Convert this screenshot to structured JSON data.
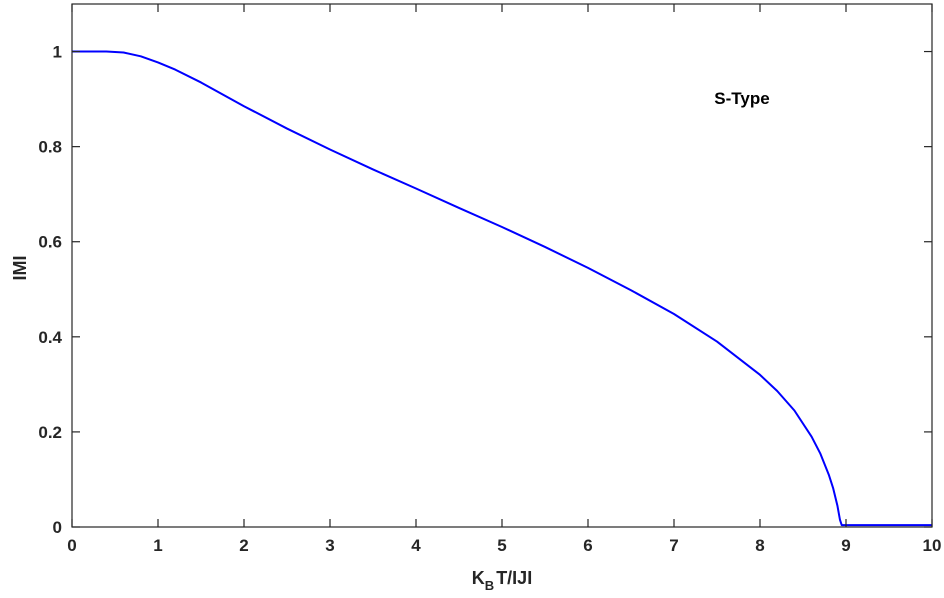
{
  "chart_data": {
    "type": "line",
    "xlabel_main": "K",
    "xlabel_sub": "B",
    "xlabel_rest": "T/IJI",
    "ylabel": "IMI",
    "annotation": "S-Type",
    "xlim": [
      0,
      10
    ],
    "ylim": [
      0,
      1.1
    ],
    "xticks": [
      0,
      1,
      2,
      3,
      4,
      5,
      6,
      7,
      8,
      9,
      10
    ],
    "yticks": [
      0,
      0.2,
      0.4,
      0.6,
      0.8,
      1
    ],
    "xtick_labels": [
      "0",
      "1",
      "2",
      "3",
      "4",
      "5",
      "6",
      "7",
      "8",
      "9",
      "10"
    ],
    "ytick_labels": [
      "0",
      "0.2",
      "0.4",
      "0.6",
      "0.8",
      "1"
    ],
    "grid": false,
    "series": [
      {
        "color": "#0000ff",
        "x": [
          0,
          0.2,
          0.4,
          0.6,
          0.8,
          1.0,
          1.2,
          1.5,
          2.0,
          2.5,
          3.0,
          3.5,
          4.0,
          4.5,
          5.0,
          5.5,
          6.0,
          6.5,
          7.0,
          7.5,
          8.0,
          8.2,
          8.4,
          8.6,
          8.7,
          8.8,
          8.85,
          8.9,
          8.93,
          8.95,
          8.97,
          9.0,
          10.0
        ],
        "y": [
          1.0,
          1.0,
          1.0,
          0.998,
          0.99,
          0.977,
          0.962,
          0.935,
          0.885,
          0.838,
          0.794,
          0.752,
          0.712,
          0.671,
          0.631,
          0.589,
          0.545,
          0.498,
          0.448,
          0.39,
          0.32,
          0.286,
          0.245,
          0.19,
          0.155,
          0.11,
          0.082,
          0.045,
          0.015,
          0.004,
          0.004,
          0.004,
          0.004
        ]
      }
    ]
  }
}
